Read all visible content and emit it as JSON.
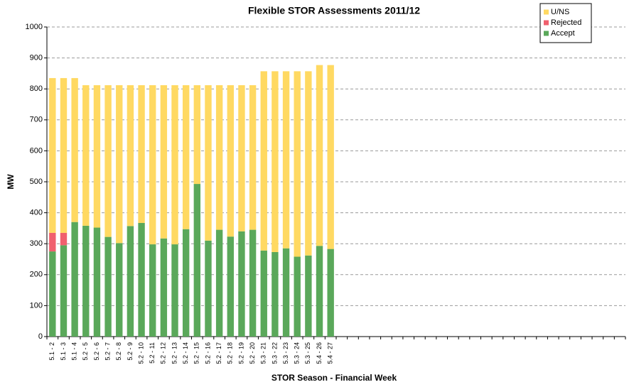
{
  "chart_data": {
    "type": "stacked_bar",
    "title": "Flexible STOR Assessments 2011/12",
    "x_label": "STOR Season - Financial Week",
    "y_label": "MW",
    "categories": [
      "5.1 - 2",
      "5.1 - 3",
      "5.1 - 4",
      "5.2 - 5",
      "5.2 - 6",
      "5.2 - 7",
      "5.2 - 8",
      "5.2 - 9",
      "5.2 - 10",
      "5.2 - 11",
      "5.2 - 12",
      "5.2 - 13",
      "5.2 - 14",
      "5.2 - 15",
      "5.2 - 16",
      "5.2 - 17",
      "5.2 - 18",
      "5.2 - 19",
      "5.2 - 20",
      "5.3 - 21",
      "5.3 - 22",
      "5.3 - 23",
      "5.3 - 24",
      "5.3 - 25",
      "5.4 - 26",
      "5.4 - 27",
      null,
      null,
      null,
      null,
      null,
      null,
      null,
      null,
      null,
      null,
      null,
      null,
      null,
      null,
      null,
      null,
      null,
      null,
      null,
      null,
      null,
      null,
      null,
      null,
      null,
      null
    ],
    "series": [
      {
        "name": "Accept",
        "color": "#5aa85a",
        "values": [
          275,
          295,
          370,
          358,
          352,
          322,
          302,
          357,
          367,
          298,
          317,
          298,
          347,
          493,
          310,
          345,
          323,
          340,
          345,
          278,
          273,
          285,
          258,
          262,
          293,
          283,
          null,
          null,
          null,
          null,
          null,
          null,
          null,
          null,
          null,
          null,
          null,
          null,
          null,
          null,
          null,
          null,
          null,
          null,
          null,
          null,
          null,
          null,
          null,
          null,
          null,
          null
        ]
      },
      {
        "name": "Rejected",
        "color": "#f0606e",
        "values": [
          60,
          40,
          0,
          0,
          0,
          0,
          0,
          0,
          0,
          0,
          0,
          0,
          0,
          0,
          0,
          0,
          0,
          0,
          0,
          0,
          0,
          0,
          0,
          0,
          0,
          0,
          null,
          null,
          null,
          null,
          null,
          null,
          null,
          null,
          null,
          null,
          null,
          null,
          null,
          null,
          null,
          null,
          null,
          null,
          null,
          null,
          null,
          null,
          null,
          null,
          null,
          null
        ]
      },
      {
        "name": "U/NS",
        "color": "#ffd962",
        "values": [
          500,
          500,
          465,
          454,
          460,
          490,
          510,
          455,
          445,
          514,
          495,
          514,
          465,
          319,
          502,
          467,
          489,
          472,
          467,
          579,
          584,
          572,
          599,
          595,
          584,
          594,
          null,
          null,
          null,
          null,
          null,
          null,
          null,
          null,
          null,
          null,
          null,
          null,
          null,
          null,
          null,
          null,
          null,
          null,
          null,
          null,
          null,
          null,
          null,
          null,
          null,
          null
        ]
      }
    ],
    "ylim": [
      0,
      1000
    ],
    "yticks": [
      0,
      100,
      200,
      300,
      400,
      500,
      600,
      700,
      800,
      900,
      1000
    ],
    "grid": true,
    "legend": "top-right"
  }
}
